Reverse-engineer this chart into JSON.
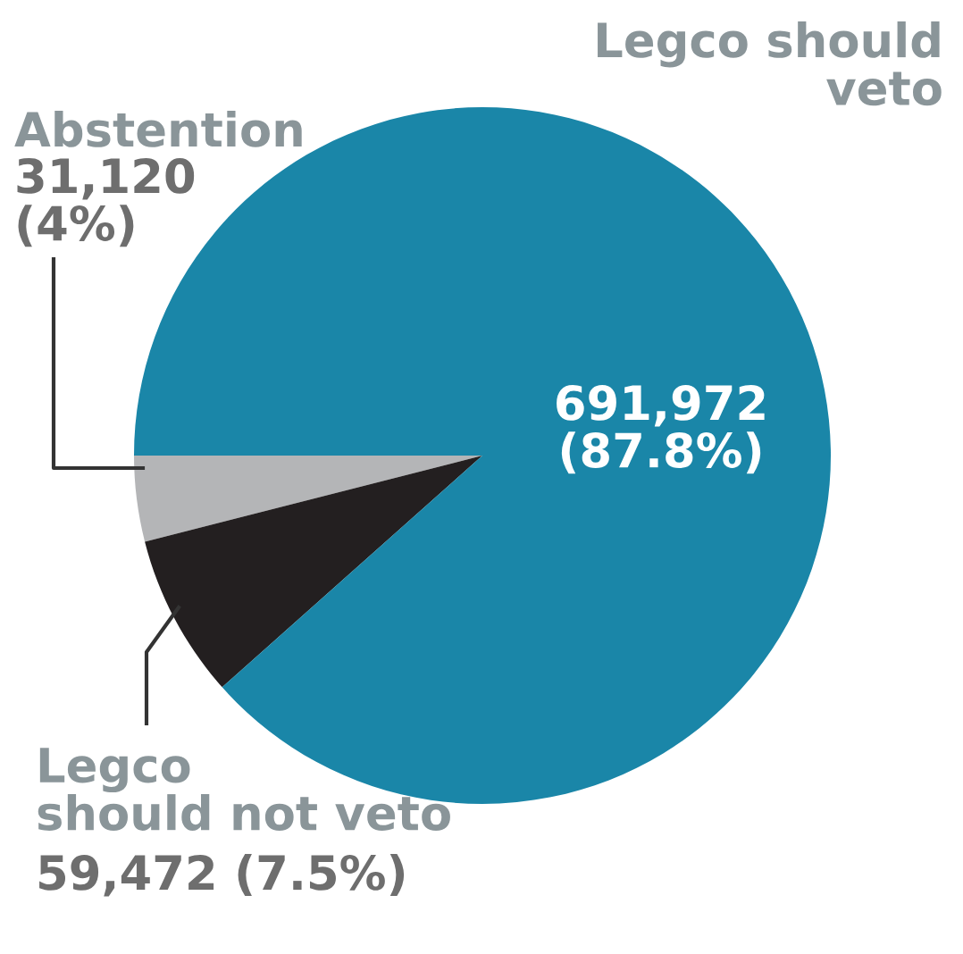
{
  "chart_data": {
    "type": "pie",
    "categories": [
      "Abstention",
      "Legco should not veto",
      "Legco should veto"
    ],
    "values": [
      31120,
      59472,
      691972
    ],
    "colors": [
      "#b4b5b7",
      "#231f20",
      "#1a86a8"
    ],
    "value_labels": [
      "31,120\n(4%)",
      "59,472 (7.5%)",
      "691,972\n(87.8%)"
    ]
  }
}
